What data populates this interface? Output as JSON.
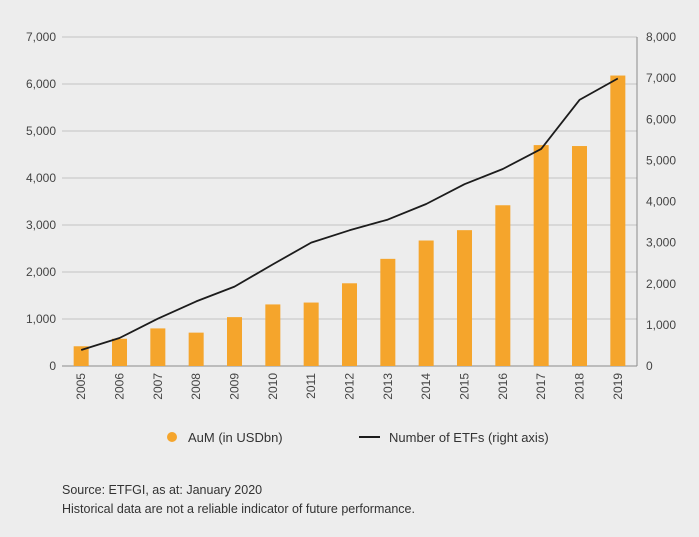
{
  "chart_data": {
    "type": "bar+line",
    "categories": [
      "2005",
      "2006",
      "2007",
      "2008",
      "2009",
      "2010",
      "2011",
      "2012",
      "2013",
      "2014",
      "2015",
      "2016",
      "2017",
      "2018",
      "2019"
    ],
    "series": [
      {
        "name": "AuM (in USDbn)",
        "type": "bar",
        "axis": "left",
        "color": "#f5a52c",
        "values": [
          420,
          580,
          800,
          710,
          1040,
          1310,
          1350,
          1760,
          2280,
          2670,
          2890,
          3420,
          4700,
          4680,
          6180
        ]
      },
      {
        "name": "Number of ETFs (right axis)",
        "type": "line",
        "axis": "right",
        "color": "#1c1c1c",
        "values": [
          390,
          680,
          1150,
          1570,
          1930,
          2470,
          3000,
          3300,
          3560,
          3940,
          4420,
          4790,
          5280,
          6470,
          6990
        ]
      }
    ],
    "y_left": {
      "range": [
        0,
        7000
      ],
      "ticks": [
        0,
        1000,
        2000,
        3000,
        4000,
        5000,
        6000,
        7000
      ],
      "tick_labels": [
        "0",
        "1,000",
        "2,000",
        "3,000",
        "4,000",
        "5,000",
        "6,000",
        "7,000"
      ]
    },
    "y_right": {
      "range": [
        0,
        8000
      ],
      "ticks": [
        0,
        1000,
        2000,
        3000,
        4000,
        5000,
        6000,
        7000,
        8000
      ],
      "tick_labels": [
        "0",
        "1,000",
        "2,000",
        "3,000",
        "4,000",
        "5,000",
        "6,000",
        "7,000",
        "8,000"
      ]
    },
    "grid": true,
    "legend_position": "bottom",
    "legend": {
      "bar_label": "AuM (in USDbn)",
      "line_label": "Number of ETFs (right axis)"
    }
  },
  "footer": {
    "source": "Source: ETFGI, as at: January 2020",
    "disclaimer": "Historical data are not a reliable indicator of future performance."
  }
}
